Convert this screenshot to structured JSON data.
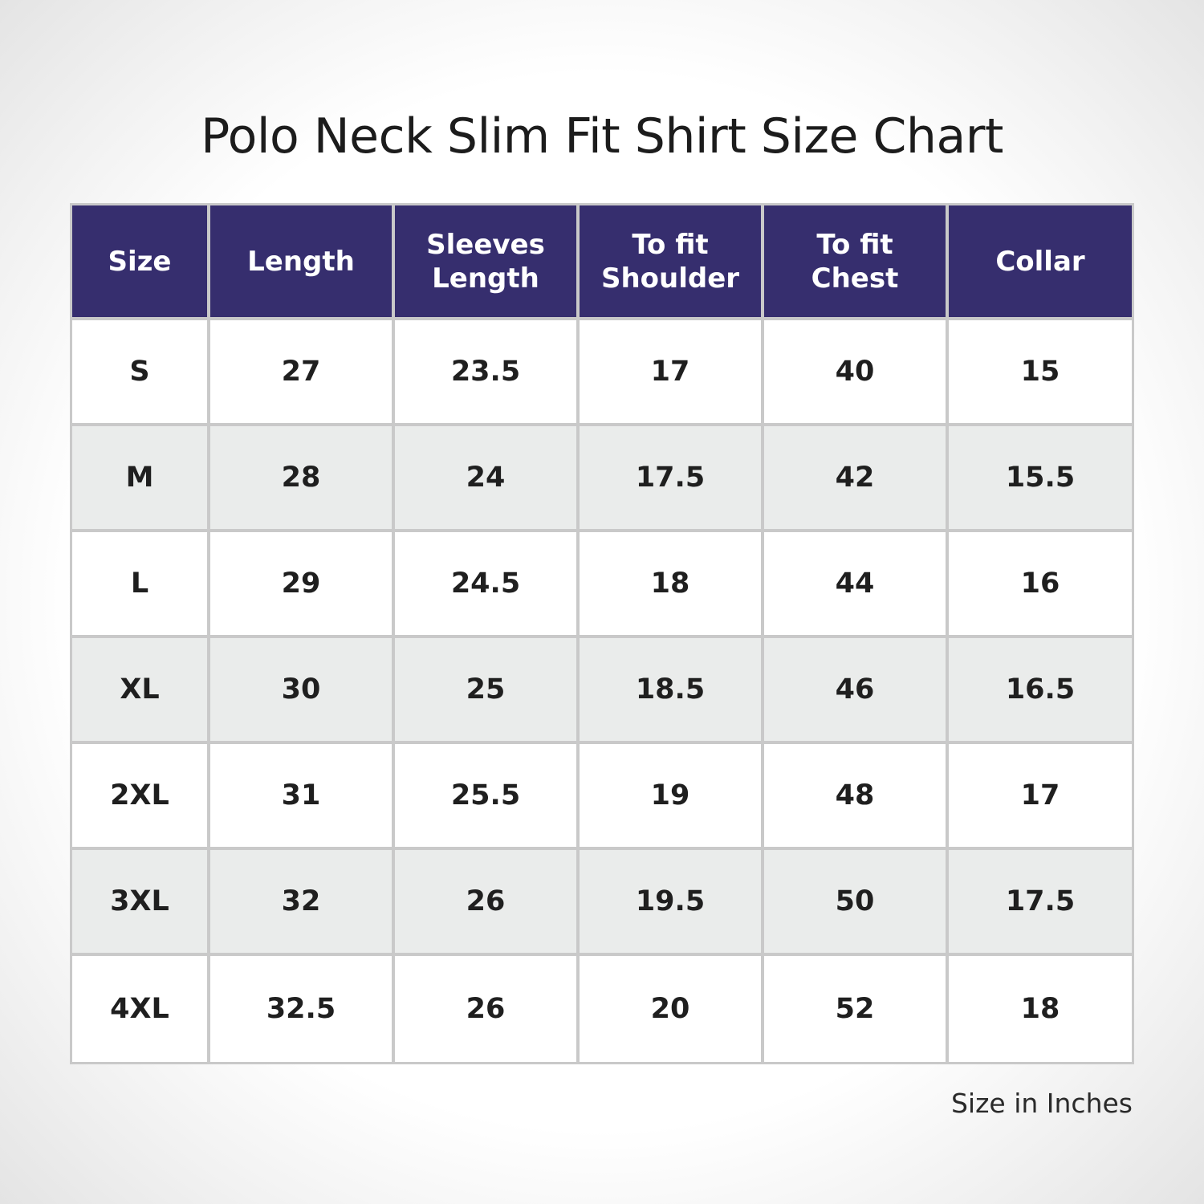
{
  "title": "Polo Neck Slim Fit Shirt Size Chart",
  "headers": [
    [
      "Size"
    ],
    [
      "Length"
    ],
    [
      "Sleeves",
      "Length"
    ],
    [
      "To fit",
      "Shoulder"
    ],
    [
      "To fit",
      "Chest"
    ],
    [
      "Collar"
    ]
  ],
  "rows": [
    [
      "S",
      "27",
      "23.5",
      "17",
      "40",
      "15"
    ],
    [
      "M",
      "28",
      "24",
      "17.5",
      "42",
      "15.5"
    ],
    [
      "L",
      "29",
      "24.5",
      "18",
      "44",
      "16"
    ],
    [
      "XL",
      "30",
      "25",
      "18.5",
      "46",
      "16.5"
    ],
    [
      "2XL",
      "31",
      "25.5",
      "19",
      "48",
      "17"
    ],
    [
      "3XL",
      "32",
      "26",
      "19.5",
      "50",
      "17.5"
    ],
    [
      "4XL",
      "32.5",
      "26",
      "20",
      "52",
      "18"
    ]
  ],
  "footnote": "Size in Inches",
  "colors": {
    "header_bg": "#362e6e",
    "header_text": "#ffffff",
    "row_alt_bg": "#eaeceb",
    "grid_line": "#c9c9c9"
  }
}
